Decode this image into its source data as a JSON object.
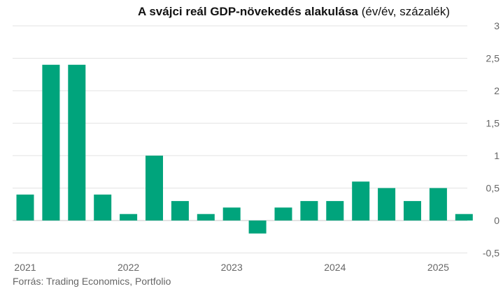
{
  "chart_data": {
    "type": "bar",
    "title": "A svájci reál GDP-növekedés alakulása",
    "title_unit": "(év/év, százalék)",
    "source": "Forrás: Trading Economics, Portfolio",
    "categories": [
      "2021Q1",
      "2021Q2",
      "2021Q3",
      "2021Q4",
      "2022Q1",
      "2022Q2",
      "2022Q3",
      "2022Q4",
      "2023Q1",
      "2023Q2",
      "2023Q3",
      "2023Q4",
      "2024Q1",
      "2024Q2",
      "2024Q3",
      "2024Q4",
      "2025Q1",
      "2025Q2"
    ],
    "values": [
      0.4,
      2.4,
      2.4,
      0.4,
      0.1,
      1.0,
      0.3,
      0.1,
      0.2,
      -0.2,
      0.2,
      0.3,
      0.3,
      0.6,
      0.5,
      0.3,
      0.5,
      0.1
    ],
    "x_tick_labels": [
      {
        "label": "2021",
        "index": 0
      },
      {
        "label": "2022",
        "index": 4
      },
      {
        "label": "2023",
        "index": 8
      },
      {
        "label": "2024",
        "index": 12
      },
      {
        "label": "2025",
        "index": 16
      }
    ],
    "y_ticks": [
      {
        "v": 3,
        "label": "3"
      },
      {
        "v": 2.5,
        "label": "2,5"
      },
      {
        "v": 2,
        "label": "2"
      },
      {
        "v": 1.5,
        "label": "1,5"
      },
      {
        "v": 1,
        "label": "1"
      },
      {
        "v": 0.5,
        "label": "0,5"
      },
      {
        "v": 0,
        "label": "0"
      },
      {
        "v": -0.5,
        "label": "-0,5"
      }
    ],
    "ylim": [
      -0.5,
      3
    ],
    "grid": true,
    "bar_color": "#00A47C"
  }
}
